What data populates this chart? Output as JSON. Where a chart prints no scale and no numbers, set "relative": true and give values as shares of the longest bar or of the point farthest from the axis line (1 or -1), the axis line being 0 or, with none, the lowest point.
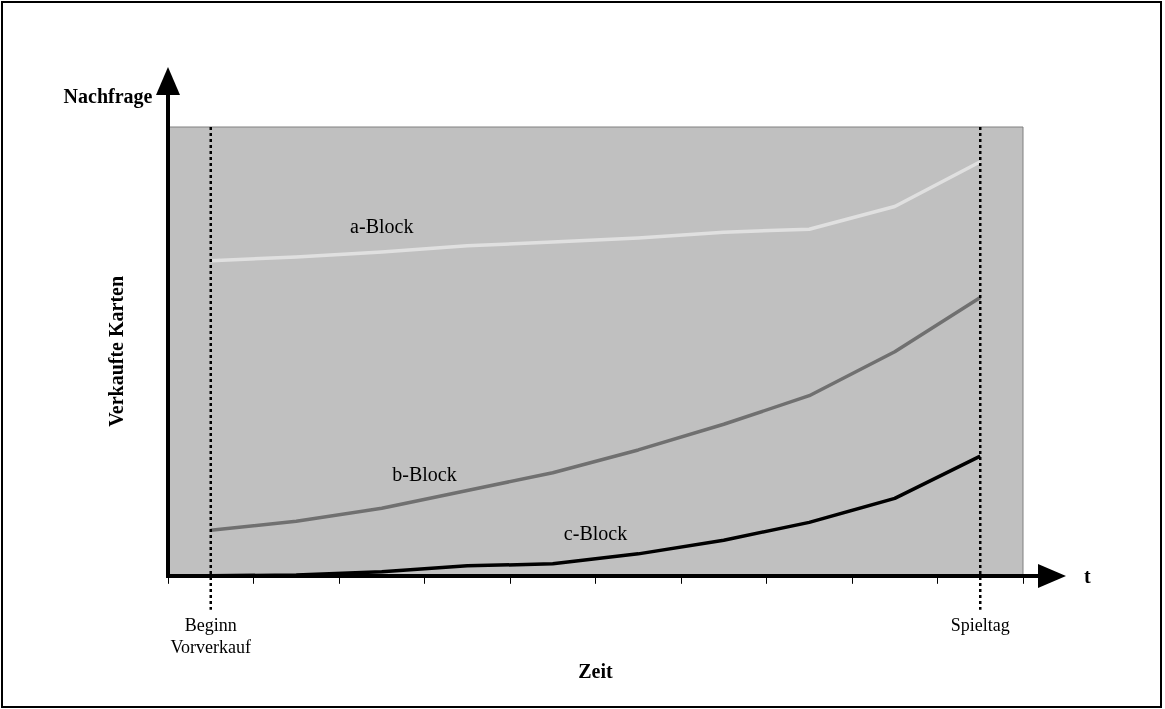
{
  "chart_data": {
    "type": "line",
    "relative": true,
    "xlabel": "Zeit",
    "ylabel": "Verkaufte Karten",
    "annotations": [
      "Nachfrage",
      "t"
    ],
    "categories": [
      "Beginn Vorverkauf",
      null,
      null,
      null,
      null,
      null,
      null,
      null,
      null,
      "Spieltag"
    ],
    "series": [
      {
        "name": "a-Block",
        "color": "#e0e0e0",
        "values": [
          0.761,
          0.77,
          0.782,
          0.797,
          0.806,
          0.816,
          0.83,
          0.837,
          0.892,
          1
        ]
      },
      {
        "name": "b-Block",
        "color": "#707070",
        "values": [
          0.11,
          0.132,
          0.163,
          0.206,
          0.249,
          0.304,
          0.366,
          0.435,
          0.541,
          0.672
        ]
      },
      {
        "name": "c-Block",
        "color": "#000000",
        "values": [
          0,
          0.002,
          0.01,
          0.024,
          0.029,
          0.053,
          0.086,
          0.129,
          0.187,
          0.289
        ]
      }
    ],
    "ref_lines": [
      {
        "axis": "x",
        "value": "Beginn Vorverkauf",
        "line_style": "dotted",
        "color": "#000000"
      },
      {
        "axis": "x",
        "value": "Spieltag",
        "line_style": "dotted",
        "color": "#000000"
      }
    ],
    "grid": false,
    "legend": false,
    "marker": "none",
    "line_style": "solid"
  }
}
